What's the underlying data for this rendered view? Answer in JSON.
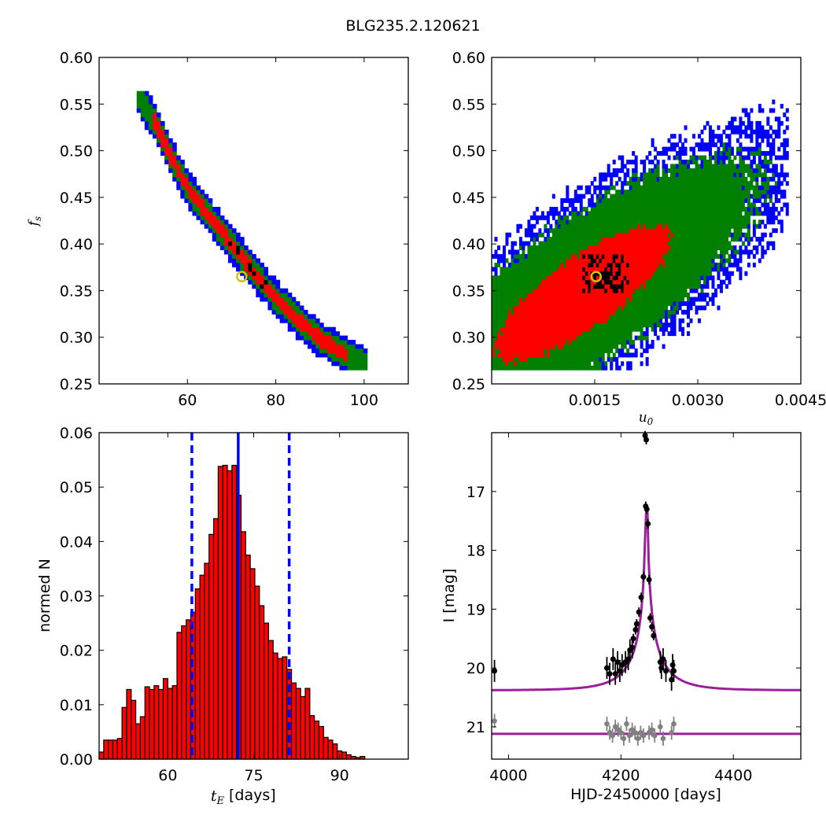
{
  "figure_title": "BLG235.2.120621",
  "chart_data": [
    {
      "panel": "top-left",
      "type": "heatmap",
      "title": "",
      "xlabel": "",
      "ylabel": "f_s",
      "xlim": [
        40,
        110
      ],
      "ylim": [
        0.25,
        0.6
      ],
      "xticks": [
        60,
        80,
        100
      ],
      "yticks": [
        0.25,
        0.3,
        0.35,
        0.4,
        0.45,
        0.5,
        0.55,
        0.6
      ],
      "ytick_labels": [
        "0.25",
        "0.30",
        "0.35",
        "0.40",
        "0.45",
        "0.50",
        "0.55",
        "0.60"
      ],
      "colors": {
        "outer": "#0000ff",
        "mid": "#007f00",
        "inner": "#ff0000",
        "core": "#000000"
      },
      "band_ridge": [
        [
          48.5,
          0.556
        ],
        [
          52,
          0.53
        ],
        [
          56,
          0.49
        ],
        [
          60,
          0.455
        ],
        [
          65,
          0.425
        ],
        [
          70,
          0.395
        ],
        [
          75,
          0.365
        ],
        [
          80,
          0.338
        ],
        [
          85,
          0.315
        ],
        [
          90,
          0.295
        ],
        [
          95,
          0.28
        ],
        [
          100,
          0.268
        ]
      ],
      "best_fit": {
        "x": 72.3,
        "y": 0.365,
        "marker": "yellow ring"
      }
    },
    {
      "panel": "top-right",
      "type": "heatmap",
      "title": "",
      "xlabel": "u_0",
      "ylabel": "",
      "xlim": [
        0.0,
        0.0045
      ],
      "ylim": [
        0.25,
        0.6
      ],
      "xticks": [
        0.0015,
        0.003,
        0.0045
      ],
      "xtick_labels": [
        "0.0015",
        "0.0030",
        "0.0045"
      ],
      "yticks": [
        0.25,
        0.3,
        0.35,
        0.4,
        0.45,
        0.5,
        0.55,
        0.6
      ],
      "ytick_labels": [
        "0.25",
        "0.30",
        "0.35",
        "0.40",
        "0.45",
        "0.50",
        "0.55",
        "0.60"
      ],
      "colors": {
        "outer": "#0000ff",
        "mid": "#007f00",
        "inner": "#ff0000",
        "core": "#000000"
      },
      "cloud_center": [
        0.0011,
        0.345
      ],
      "best_fit": {
        "x": 0.00152,
        "y": 0.365,
        "marker": "yellow ring"
      }
    },
    {
      "panel": "bottom-left",
      "type": "bar",
      "title": "",
      "xlabel": "t_E [days]",
      "ylabel": "normed N",
      "xlim": [
        48,
        102
      ],
      "ylim": [
        0.0,
        0.06
      ],
      "xticks": [
        60,
        75,
        90
      ],
      "yticks": [
        0.0,
        0.01,
        0.02,
        0.03,
        0.04,
        0.05,
        0.06
      ],
      "ytick_labels": [
        "0.00",
        "0.01",
        "0.02",
        "0.03",
        "0.04",
        "0.05",
        "0.06"
      ],
      "bin_start": 48.0,
      "bin_width": 0.8,
      "values": [
        0.0013,
        0.0035,
        0.0035,
        0.0035,
        0.0038,
        0.0095,
        0.0128,
        0.0108,
        0.0065,
        0.0078,
        0.0133,
        0.0128,
        0.0135,
        0.0128,
        0.0148,
        0.013,
        0.0135,
        0.0233,
        0.0245,
        0.0256,
        0.027,
        0.0313,
        0.0338,
        0.036,
        0.0413,
        0.0442,
        0.0538,
        0.054,
        0.053,
        0.054,
        0.0485,
        0.0418,
        0.0375,
        0.035,
        0.0318,
        0.0282,
        0.025,
        0.0218,
        0.0195,
        0.0185,
        0.0188,
        0.0165,
        0.014,
        0.013,
        0.0115,
        0.013,
        0.008,
        0.007,
        0.006,
        0.004,
        0.0035,
        0.0028,
        0.0015,
        0.0013,
        0.0008,
        0.0005,
        0.0003,
        0.0005
      ],
      "bar_color": "#ff0000",
      "median": 72.3,
      "interval": [
        64.2,
        81.2
      ],
      "line_color": "#0000ff"
    },
    {
      "panel": "bottom-right",
      "type": "scatter",
      "title": "",
      "xlabel": "HJD-2450000 [days]",
      "ylabel": "I [mag]",
      "xlim": [
        3970,
        4520
      ],
      "ylim": [
        21.55,
        16.0
      ],
      "xticks": [
        4000,
        4200,
        4400
      ],
      "yticks": [
        17,
        18,
        19,
        20,
        21
      ],
      "model": {
        "t0": 4245.5,
        "tE": 72.3,
        "u0": 0.00152,
        "baseline": 20.38,
        "fs": 0.365,
        "color": "#9b1f9b"
      },
      "lower_baseline": 21.12,
      "points": [
        [
          4243,
          16.05
        ],
        [
          4245,
          16.12
        ],
        [
          4244,
          17.25
        ],
        [
          4246,
          17.3
        ],
        [
          4248,
          17.55
        ],
        [
          4240,
          18.45
        ],
        [
          4250,
          18.5
        ],
        [
          4236,
          18.8
        ],
        [
          4232,
          19.05
        ],
        [
          4228,
          19.25
        ],
        [
          4226,
          19.35
        ],
        [
          4222,
          19.5
        ],
        [
          4220,
          19.65
        ],
        [
          4216,
          19.7
        ],
        [
          4252,
          19.15
        ],
        [
          4255,
          19.3
        ],
        [
          4258,
          19.45
        ],
        [
          4213,
          19.85
        ],
        [
          4208,
          19.9
        ],
        [
          4202,
          19.95
        ],
        [
          4198,
          20.05
        ],
        [
          4194,
          19.9
        ],
        [
          4190,
          20.1
        ],
        [
          4186,
          19.85
        ],
        [
          4180,
          20.1
        ],
        [
          4175,
          20.0
        ],
        [
          4270,
          19.9
        ],
        [
          4275,
          19.85
        ],
        [
          4272,
          20.0
        ],
        [
          4280,
          20.05
        ],
        [
          4290,
          20.2
        ],
        [
          4292,
          19.95
        ],
        [
          4294,
          20.05
        ],
        [
          3975,
          20.05
        ]
      ],
      "residuals": [
        [
          3975,
          20.9
        ],
        [
          4175,
          20.95
        ],
        [
          4180,
          21.1
        ],
        [
          4185,
          21.15
        ],
        [
          4190,
          21.0
        ],
        [
          4195,
          21.05
        ],
        [
          4200,
          21.1
        ],
        [
          4205,
          21.2
        ],
        [
          4210,
          20.95
        ],
        [
          4215,
          21.15
        ],
        [
          4220,
          21.05
        ],
        [
          4225,
          21.1
        ],
        [
          4230,
          21.2
        ],
        [
          4235,
          21.1
        ],
        [
          4240,
          21.15
        ],
        [
          4250,
          21.1
        ],
        [
          4255,
          21.05
        ],
        [
          4260,
          21.15
        ],
        [
          4270,
          21.0
        ],
        [
          4275,
          21.2
        ],
        [
          4290,
          21.1
        ],
        [
          4294,
          20.95
        ]
      ]
    }
  ]
}
